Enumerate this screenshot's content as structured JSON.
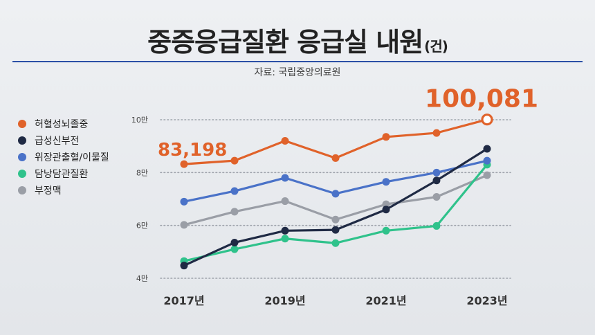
{
  "header": {
    "title": "중증응급질환 응급실 내원",
    "unit": "(건)",
    "source": "자료: 국립중앙의료원"
  },
  "chart_data": {
    "type": "line",
    "x": [
      2017,
      2018,
      2019,
      2020,
      2021,
      2022,
      2023
    ],
    "x_tick_labels": [
      "2017년",
      "2019년",
      "2021년",
      "2023년"
    ],
    "x_tick_values": [
      2017,
      2019,
      2021,
      2023
    ],
    "y_tick_labels": [
      "4만",
      "6만",
      "8만",
      "10만"
    ],
    "y_tick_values": [
      40000,
      60000,
      80000,
      100000
    ],
    "ylim": [
      40000,
      100000
    ],
    "grid": true,
    "legend_position": "left",
    "series": [
      {
        "name": "허혈성뇌졸중",
        "color": "#e0622a",
        "values": [
          83198,
          84500,
          92000,
          85500,
          93500,
          95000,
          100081
        ]
      },
      {
        "name": "급성신부전",
        "color": "#1f2a44",
        "values": [
          44800,
          53500,
          58000,
          58300,
          66000,
          77000,
          89000
        ]
      },
      {
        "name": "위장관출혈/이물질",
        "color": "#4a72c8",
        "values": [
          69000,
          73000,
          78000,
          72000,
          76500,
          80000,
          84500
        ]
      },
      {
        "name": "담낭담관질환",
        "color": "#2fc28b",
        "values": [
          46500,
          51000,
          55000,
          53300,
          58000,
          59800,
          83000
        ]
      },
      {
        "name": "부정맥",
        "color": "#9a9ea6",
        "values": [
          60200,
          65200,
          69200,
          62200,
          68000,
          70800,
          79000
        ]
      }
    ],
    "annotations": [
      {
        "text": "83,198",
        "series": 0,
        "x": 2017,
        "color": "#e0622a"
      },
      {
        "text": "100,081",
        "series": 0,
        "x": 2023,
        "color": "#e0622a"
      }
    ]
  }
}
